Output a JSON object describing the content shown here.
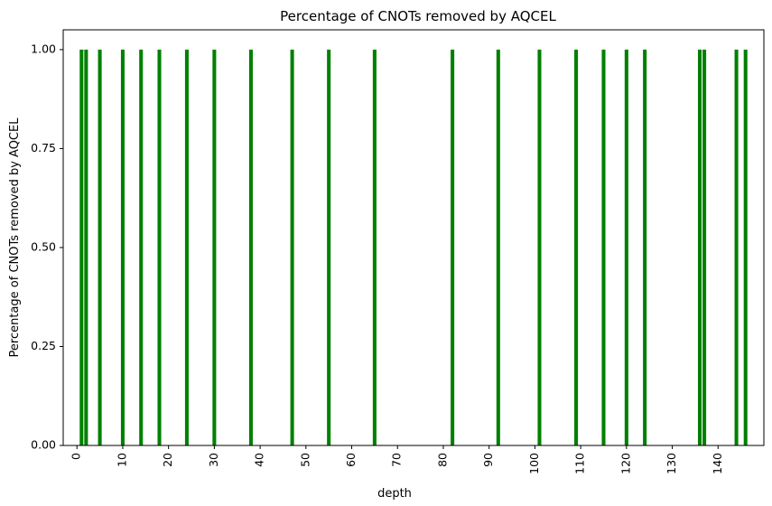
{
  "chart_data": {
    "type": "bar",
    "title": "Percentage of CNOTs removed by AQCEL",
    "xlabel": "depth",
    "ylabel": "Percentage of CNOTs removed by AQCEL",
    "xlim": [
      -3,
      150
    ],
    "ylim": [
      0,
      1.05
    ],
    "x_ticks": [
      0,
      10,
      20,
      30,
      40,
      50,
      60,
      70,
      80,
      90,
      100,
      110,
      120,
      130,
      140
    ],
    "y_ticks": [
      0.0,
      0.25,
      0.5,
      0.75,
      1.0
    ],
    "y_tick_labels": [
      "0.00",
      "0.25",
      "0.50",
      "0.75",
      "1.00"
    ],
    "grid": false,
    "bar_color": "#008000",
    "x": [
      1,
      2,
      5,
      10,
      14,
      18,
      24,
      30,
      38,
      47,
      55,
      65,
      82,
      92,
      101,
      109,
      115,
      120,
      124,
      136,
      137,
      144,
      146
    ],
    "values": [
      1,
      1,
      1,
      1,
      1,
      1,
      1,
      1,
      1,
      1,
      1,
      1,
      1,
      1,
      1,
      1,
      1,
      1,
      1,
      1,
      1,
      1,
      1
    ]
  }
}
